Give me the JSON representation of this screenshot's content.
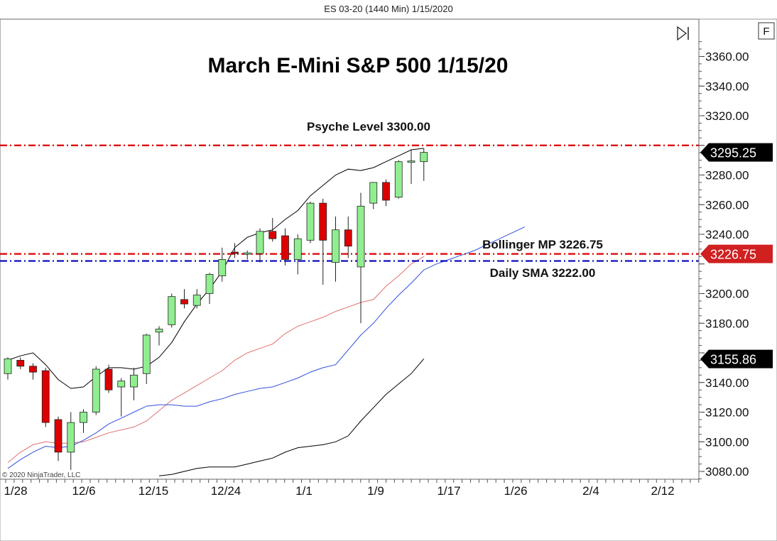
{
  "window_title": "ES 03-20 (1440 Min)  1/15/2020",
  "copyright": "© 2020 NinjaTrader, LLC",
  "controls": {
    "fit_label": "F",
    "scroll_end_icon": "skip-to-end-icon"
  },
  "colors": {
    "bull_fill": "#90EE90",
    "bear_fill": "#DD0000",
    "psyche_line": "#DD0000",
    "bollinger_mp_line": "#DD0000",
    "sma_line": "#0000BB",
    "bollinger_band": "#000000",
    "ma_red": "#E07070",
    "ma_blue": "#3050E0",
    "tag_last": "#000000",
    "tag_mp": "#D02020"
  },
  "chart_data": {
    "type": "candlestick",
    "title": "March E-Mini S&P 500 1/15/20",
    "ylim": [
      3073,
      3370
    ],
    "y_ticks": [
      3080,
      3100,
      3120,
      3140,
      3160,
      3180,
      3200,
      3220,
      3240,
      3260,
      3280,
      3300,
      3320,
      3340,
      3360
    ],
    "y_tick_labels_visible": [
      "3080.00",
      "3100.00",
      "3120.00",
      "3140.00",
      "3180.00",
      "3200.00",
      "3240.00",
      "3260.00",
      "3280.00",
      "3320.00",
      "3340.00",
      "3360.00"
    ],
    "x_tick_labels": [
      "1/28",
      "12/6",
      "12/15",
      "12/24",
      "1/1",
      "1/9",
      "1/17",
      "1/26",
      "2/4",
      "2/12"
    ],
    "candles": [
      {
        "o": 3146,
        "h": 3157,
        "l": 3142,
        "c": 3156
      },
      {
        "o": 3155,
        "h": 3157,
        "l": 3149,
        "c": 3151
      },
      {
        "o": 3151,
        "h": 3153,
        "l": 3142,
        "c": 3147
      },
      {
        "o": 3148,
        "h": 3150,
        "l": 3110,
        "c": 3113
      },
      {
        "o": 3115,
        "h": 3117,
        "l": 3087,
        "c": 3093
      },
      {
        "o": 3093,
        "h": 3120,
        "l": 3081,
        "c": 3113
      },
      {
        "o": 3113,
        "h": 3122,
        "l": 3106,
        "c": 3120
      },
      {
        "o": 3120,
        "h": 3151,
        "l": 3118,
        "c": 3149
      },
      {
        "o": 3149,
        "h": 3152,
        "l": 3133,
        "c": 3135
      },
      {
        "o": 3137,
        "h": 3143,
        "l": 3117,
        "c": 3141
      },
      {
        "o": 3137,
        "h": 3150,
        "l": 3128,
        "c": 3145
      },
      {
        "o": 3146,
        "h": 3173,
        "l": 3139,
        "c": 3172
      },
      {
        "o": 3174,
        "h": 3178,
        "l": 3165,
        "c": 3176
      },
      {
        "o": 3179,
        "h": 3200,
        "l": 3177,
        "c": 3198
      },
      {
        "o": 3196,
        "h": 3203,
        "l": 3190,
        "c": 3193
      },
      {
        "o": 3192,
        "h": 3203,
        "l": 3190,
        "c": 3199
      },
      {
        "o": 3200,
        "h": 3214,
        "l": 3193,
        "c": 3213
      },
      {
        "o": 3212,
        "h": 3231,
        "l": 3208,
        "c": 3223
      },
      {
        "o": 3228,
        "h": 3234,
        "l": 3224,
        "c": 3227
      },
      {
        "o": 3227,
        "h": 3229,
        "l": 3223,
        "c": 3227
      },
      {
        "o": 3227,
        "h": 3244,
        "l": 3221,
        "c": 3242
      },
      {
        "o": 3242,
        "h": 3251,
        "l": 3235,
        "c": 3237
      },
      {
        "o": 3239,
        "h": 3244,
        "l": 3219,
        "c": 3223
      },
      {
        "o": 3223,
        "h": 3240,
        "l": 3213,
        "c": 3237
      },
      {
        "o": 3236,
        "h": 3262,
        "l": 3234,
        "c": 3261
      },
      {
        "o": 3261,
        "h": 3264,
        "l": 3206,
        "c": 3236
      },
      {
        "o": 3221,
        "h": 3252,
        "l": 3208,
        "c": 3243
      },
      {
        "o": 3243,
        "h": 3252,
        "l": 3224,
        "c": 3232
      },
      {
        "o": 3218,
        "h": 3268,
        "l": 3180,
        "c": 3259
      },
      {
        "o": 3261,
        "h": 3275,
        "l": 3257,
        "c": 3275
      },
      {
        "o": 3275,
        "h": 3277,
        "l": 3259,
        "c": 3263
      },
      {
        "o": 3265,
        "h": 3290,
        "l": 3264,
        "c": 3289
      },
      {
        "o": 3289,
        "h": 3297,
        "l": 3274,
        "c": 3289
      },
      {
        "o": 3289,
        "h": 3298,
        "l": 3276,
        "c": 3295.25
      }
    ],
    "series": [
      {
        "name": "",
        "style": "bollinger-upper",
        "x_start": 0,
        "values": [
          3155,
          3158,
          3160,
          3152,
          3142,
          3136,
          3137,
          3144,
          3150,
          3150,
          3149,
          3151,
          3157,
          3167,
          3181,
          3193,
          3203,
          3215,
          3231,
          3238,
          3241,
          3243,
          3250,
          3256,
          3266,
          3273,
          3280,
          3284,
          3283,
          3285,
          3289,
          3293,
          3297,
          3298
        ]
      },
      {
        "name": "",
        "style": "bollinger-lower",
        "x_start": 12,
        "values": [
          3077,
          3078,
          3080,
          3082,
          3083,
          3083,
          3083,
          3085,
          3087,
          3089,
          3093,
          3096,
          3097,
          3098,
          3100,
          3104,
          3114,
          3123,
          3132,
          3139,
          3146,
          3156
        ]
      },
      {
        "name": "",
        "style": "ma-red",
        "x_start": 0,
        "values": [
          3086,
          3093,
          3098,
          3100,
          3099,
          3099,
          3100,
          3103,
          3106,
          3108,
          3110,
          3114,
          3121,
          3128,
          3133,
          3138,
          3143,
          3148,
          3155,
          3160,
          3163,
          3166,
          3173,
          3178,
          3181,
          3184,
          3188,
          3191,
          3194,
          3196,
          3205,
          3212,
          3220,
          3225
        ]
      },
      {
        "name": "",
        "style": "ma-blue",
        "x_start": 0,
        "values": [
          3082,
          3088,
          3093,
          3097,
          3096,
          3097,
          3101,
          3106,
          3112,
          3116,
          3120,
          3124,
          3125,
          3125,
          3124,
          3124,
          3127,
          3129,
          3132,
          3134,
          3136,
          3137,
          3140,
          3143,
          3147,
          3150,
          3152,
          3162,
          3172,
          3180,
          3190,
          3199,
          3207,
          3216,
          3220,
          3223,
          3226,
          3229,
          3233,
          3237,
          3241,
          3245
        ]
      }
    ],
    "levels": [
      {
        "name": "Psyche Level 3300.00",
        "value": 3300,
        "style": "psyche"
      },
      {
        "name": "Bollinger MP 3226.75",
        "value": 3226.75,
        "style": "bollinger-mp"
      },
      {
        "name": "Daily SMA 3222.00",
        "value": 3222,
        "style": "sma"
      }
    ],
    "price_tags": [
      {
        "label": "3295.25",
        "value": 3295.25,
        "style": "last"
      },
      {
        "label": "3226.75",
        "value": 3226.75,
        "style": "mp"
      },
      {
        "label": "3155.86",
        "value": 3155.86,
        "style": "last"
      }
    ],
    "grid": false
  }
}
